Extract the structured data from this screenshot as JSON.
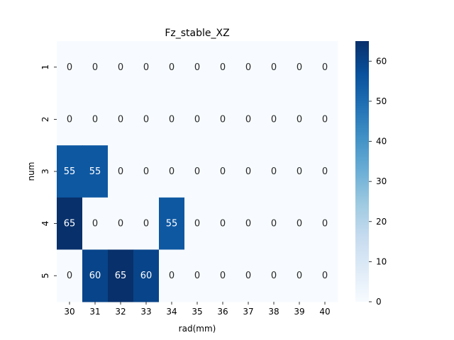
{
  "chart_data": {
    "type": "heatmap",
    "title": "Fz_stable_XZ",
    "xlabel": "rad(mm)",
    "ylabel": "num",
    "x_categories": [
      "30",
      "31",
      "32",
      "33",
      "34",
      "35",
      "36",
      "37",
      "38",
      "39",
      "40"
    ],
    "y_categories": [
      "1",
      "2",
      "3",
      "4",
      "5"
    ],
    "values": [
      [
        0,
        0,
        0,
        0,
        0,
        0,
        0,
        0,
        0,
        0,
        0
      ],
      [
        0,
        0,
        0,
        0,
        0,
        0,
        0,
        0,
        0,
        0,
        0
      ],
      [
        55,
        55,
        0,
        0,
        0,
        0,
        0,
        0,
        0,
        0,
        0
      ],
      [
        65,
        0,
        0,
        0,
        55,
        0,
        0,
        0,
        0,
        0,
        0
      ],
      [
        0,
        60,
        65,
        60,
        0,
        0,
        0,
        0,
        0,
        0,
        0
      ]
    ],
    "colorbar": {
      "min": 0,
      "max": 65,
      "ticks": [
        "0",
        "10",
        "20",
        "30",
        "40",
        "50",
        "60"
      ],
      "colormap": "Blues",
      "position": "right"
    },
    "annotations": true,
    "colors": {
      "low": "#f7fbff",
      "high": "#08306b",
      "annot_dark": "#262626",
      "annot_light": "#ffffff"
    }
  }
}
